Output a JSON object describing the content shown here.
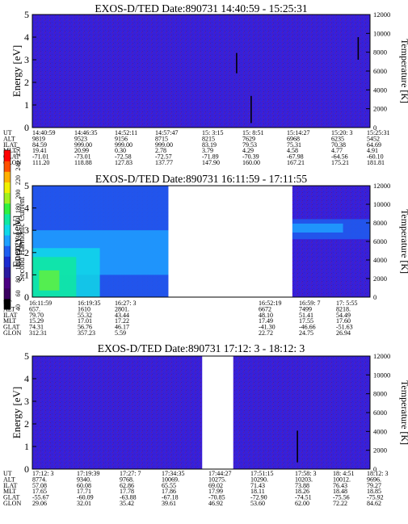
{
  "chart_data": {
    "type": "heatmap",
    "colorbar": {
      "label": "Second Harmonic Current",
      "ticks": [
        "40",
        "60",
        "80",
        "100",
        "120",
        "140",
        "160",
        "180",
        "200",
        "220",
        "240",
        "250"
      ],
      "colors": [
        "#000000",
        "#3a0060",
        "#4b0082",
        "#2a1aa0",
        "#1c2bd0",
        "#1e5ef0",
        "#1ea0ff",
        "#10d8e8",
        "#10e8a0",
        "#30f040",
        "#a0f020",
        "#f0f000",
        "#ffb000",
        "#ff5000",
        "#ff0000"
      ]
    },
    "background_color": "#3a1fd8",
    "panels": [
      {
        "title": "EXOS-D/TED   Date:890731   14:40:59 - 15:25:31",
        "ylabel": "Energy [eV]",
        "ylabel2": "Temperature [K]",
        "ylim": [
          0,
          5
        ],
        "ylim2": [
          0,
          12000
        ],
        "yticks": [
          "0",
          "1",
          "2",
          "3",
          "4",
          "5"
        ],
        "yticks2": [
          "0",
          "2000",
          "4000",
          "6000",
          "8000",
          "10000",
          "12000"
        ],
        "gaps": [],
        "features": [
          {
            "x": 0.605,
            "y0": 2.4,
            "y1": 3.3,
            "color": "#000000"
          },
          {
            "x": 0.648,
            "y0": 0.2,
            "y1": 1.4,
            "color": "#000000"
          },
          {
            "x": 0.965,
            "y0": 3.0,
            "y1": 4.0,
            "color": "#000000"
          }
        ],
        "blobs": [],
        "table": {
          "row_labels": [
            "UT",
            "ALT",
            "ILAT",
            "MLT",
            "GLAT",
            "GLON"
          ],
          "columns": [
            [
              "14:40:59",
              "9819",
              "84.59",
              "19.41",
              "-71.01",
              "111.20"
            ],
            [
              "14:46:35",
              "9523",
              "999.00",
              "20.99",
              "-73.01",
              "118.88"
            ],
            [
              "14:52:11",
              "9156",
              "999.00",
              "0.30",
              "-72.58",
              "127.83"
            ],
            [
              "14:57:47",
              "8715",
              "999.00",
              "2.78",
              "-72.57",
              "137.77"
            ],
            [
              "15: 3:15",
              "8215",
              "83.19",
              "3.79",
              "-71.89",
              "147.90"
            ],
            [
              "15: 8:51",
              "7629",
              "79.53",
              "4.29",
              "-70.39",
              "160.00"
            ],
            [
              "15:14:27",
              "6968",
              "75.31",
              "4.58",
              "-67.98",
              "167.21"
            ],
            [
              "15:20: 3",
              "6235",
              "70.38",
              "4.77",
              "-64.56",
              "175.21"
            ],
            [
              "15:25:31",
              "5452",
              "64.69",
              "4.91",
              "-60.10",
              "181.81"
            ]
          ]
        }
      },
      {
        "title": "EXOS-D/TED   Date:890731   16:11:59 - 17:11:55",
        "ylabel": "Energy [eV]",
        "ylabel2": "Temperature [K]",
        "ylim": [
          0,
          5
        ],
        "ylim2": [
          0,
          12000
        ],
        "yticks": [
          "0",
          "1",
          "2",
          "3",
          "4",
          "5"
        ],
        "yticks2": [
          "0",
          "2000",
          "4000",
          "6000",
          "8000",
          "10000",
          "12000"
        ],
        "gaps": [
          [
            0.403,
            0.77
          ]
        ],
        "features": [],
        "blobs": [
          {
            "x0": 0.0,
            "x1": 0.403,
            "y0": 0.0,
            "y1": 5.0,
            "color": "#1e5ef0"
          },
          {
            "x0": 0.0,
            "x1": 0.403,
            "y0": 1.0,
            "y1": 3.0,
            "color": "#1ea0ff"
          },
          {
            "x0": 0.0,
            "x1": 0.2,
            "y0": 0.0,
            "y1": 2.2,
            "color": "#10d8e8"
          },
          {
            "x0": 0.0,
            "x1": 0.13,
            "y0": 0.0,
            "y1": 1.8,
            "color": "#10e8a0"
          },
          {
            "x0": 0.02,
            "x1": 0.08,
            "y0": 0.3,
            "y1": 1.2,
            "color": "#60f040"
          },
          {
            "x0": 0.77,
            "x1": 1.0,
            "y0": 2.6,
            "y1": 3.5,
            "color": "#1e5ef0"
          },
          {
            "x0": 0.77,
            "x1": 0.92,
            "y0": 2.9,
            "y1": 3.3,
            "color": "#1ea0ff"
          }
        ],
        "table": {
          "row_labels": [
            "UT",
            "ALT",
            "ILAT",
            "MLT",
            "GLAT",
            "GLON"
          ],
          "columns": [
            [
              "16:11:59",
              "657.",
              "79.70",
              "15.29",
              "74.31",
              "312.31"
            ],
            [
              "16:19:35",
              "1610",
              "55.32",
              "17.01",
              "56.76",
              "357.23"
            ],
            [
              "16:27: 3",
              "2801.",
              "43.44",
              "17.22",
              "46.17",
              "5.59"
            ],
            [
              "",
              "",
              "",
              "",
              "",
              ""
            ],
            [
              "",
              "",
              "",
              "",
              "",
              ""
            ],
            [
              "16:52:19",
              "6672",
              "48.10",
              "17.49",
              "-41.30",
              "22.72"
            ],
            [
              "16:59: 7",
              "7499",
              "51.41",
              "17.55",
              "-46.66",
              "24.75"
            ],
            [
              "17: 5:55",
              "8218.",
              "54.49",
              "17.60",
              "-51.63",
              "26.94"
            ]
          ]
        }
      },
      {
        "title": "EXOS-D/TED   Date:890731   17:12: 3 - 18:12: 3",
        "ylabel": "Energy [eV]",
        "ylabel2": "Temperature [K]",
        "ylim": [
          0,
          5
        ],
        "ylim2": [
          0,
          12000
        ],
        "yticks": [
          "0",
          "1",
          "2",
          "3",
          "4",
          "5"
        ],
        "yticks2": [
          "0",
          "2000",
          "4000",
          "6000",
          "8000",
          "10000",
          "12000"
        ],
        "gaps": [
          [
            0.503,
            0.595
          ]
        ],
        "features": [
          {
            "x": 0.785,
            "y0": 0.3,
            "y1": 1.7,
            "color": "#000000"
          }
        ],
        "blobs": [],
        "table": {
          "row_labels": [
            "UT",
            "ALT",
            "ILAT",
            "MLT",
            "GLAT",
            "GLON"
          ],
          "columns": [
            [
              "17:12: 3",
              "8774.",
              "57.08",
              "17.65",
              "-55.67",
              "29.06"
            ],
            [
              "17:19:39",
              "9340.",
              "60.08",
              "17.71",
              "-60.09",
              "32.01"
            ],
            [
              "17:27: 7",
              "9768.",
              "62.86",
              "17.78",
              "-63.88",
              "35.42"
            ],
            [
              "17:34:35",
              "10069.",
              "65.55",
              "17.86",
              "-67.18",
              "39.61"
            ],
            [
              "17:44:27",
              "10275.",
              "69.02",
              "17.99",
              "-70.85",
              "46.92"
            ],
            [
              "17:51:15",
              "10290.",
              "71.43",
              "18.11",
              "-72.90",
              "53.60"
            ],
            [
              "17:58: 3",
              "10203.",
              "73.88",
              "18.26",
              "-74.51",
              "62.00"
            ],
            [
              "18: 4:51",
              "10012.",
              "76.43",
              "18.48",
              "-75.56",
              "72.22"
            ],
            [
              "18:12: 3",
              "9696.",
              "79.27",
              "18.85",
              "-75.92",
              "84.62"
            ]
          ]
        }
      }
    ]
  }
}
